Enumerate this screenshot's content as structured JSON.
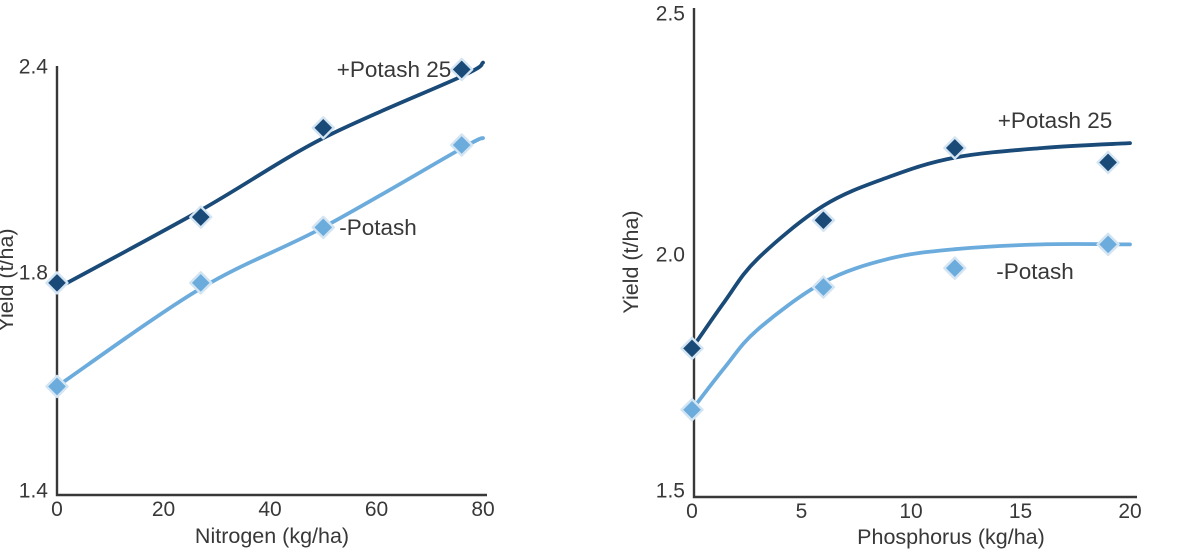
{
  "chart_data": [
    {
      "type": "scatter",
      "title": "",
      "xlabel": "Nitrogen (kg/ha)",
      "ylabel": "Yield (t/ha)",
      "xlim": [
        0,
        80
      ],
      "x_ticks": [
        "0",
        "20",
        "40",
        "60",
        "80"
      ],
      "y_ticks": [
        "1.4",
        "1.8",
        "2.4"
      ],
      "grid": false,
      "legend_position": "inline-labels",
      "series": [
        {
          "name": "+Potash 25",
          "color": "#1a4a78",
          "marker": "diamond",
          "points": [
            [
              0,
              1.78
            ],
            [
              27,
              1.96
            ],
            [
              50,
              2.22
            ],
            [
              76,
              2.39
            ]
          ],
          "trend": [
            [
              0,
              1.77
            ],
            [
              27,
              1.98
            ],
            [
              50,
              2.19
            ],
            [
              76,
              2.37
            ],
            [
              80,
              2.41
            ]
          ]
        },
        {
          "name": "-Potash",
          "color": "#6cacdd",
          "marker": "diamond",
          "points": [
            [
              0,
              1.59
            ],
            [
              27,
              1.78
            ],
            [
              50,
              1.93
            ],
            [
              76,
              2.17
            ]
          ],
          "trend": [
            [
              0,
              1.59
            ],
            [
              27,
              1.77
            ],
            [
              50,
              1.93
            ],
            [
              76,
              2.16
            ],
            [
              80,
              2.19
            ]
          ]
        }
      ]
    },
    {
      "type": "scatter",
      "title": "",
      "xlabel": "Phosphorus (kg/ha)",
      "ylabel": "Yield (t/ha)",
      "xlim": [
        0,
        20
      ],
      "x_ticks": [
        "0",
        "5",
        "10",
        "15",
        "20"
      ],
      "y_ticks": [
        "1.5",
        "2.0",
        "2.5"
      ],
      "grid": false,
      "legend_position": "inline-labels",
      "series": [
        {
          "name": "+Potash 25",
          "color": "#1a4a78",
          "marker": "diamond",
          "points": [
            [
              0,
              1.8
            ],
            [
              6,
              2.07
            ],
            [
              12,
              2.22
            ],
            [
              19,
              2.19
            ]
          ],
          "trend": [
            [
              0,
              1.8
            ],
            [
              1.5,
              1.9
            ],
            [
              3,
              1.99
            ],
            [
              6,
              2.1
            ],
            [
              9,
              2.16
            ],
            [
              12,
              2.2
            ],
            [
              16,
              2.22
            ],
            [
              20,
              2.23
            ]
          ]
        },
        {
          "name": "-Potash",
          "color": "#6cacdd",
          "marker": "diamond",
          "points": [
            [
              0,
              1.67
            ],
            [
              6,
              1.93
            ],
            [
              12,
              1.97
            ],
            [
              19,
              2.02
            ]
          ],
          "trend": [
            [
              0,
              1.67
            ],
            [
              1.5,
              1.76
            ],
            [
              3,
              1.84
            ],
            [
              6,
              1.94
            ],
            [
              9,
              1.99
            ],
            [
              12,
              2.01
            ],
            [
              16,
              2.02
            ],
            [
              20,
              2.02
            ]
          ]
        }
      ]
    }
  ],
  "colors": {
    "text": "#383838",
    "axis": "#383838",
    "marker_outline": "#d3e4f2",
    "series_dark": "#1a4a78",
    "series_light": "#6cacdd"
  }
}
